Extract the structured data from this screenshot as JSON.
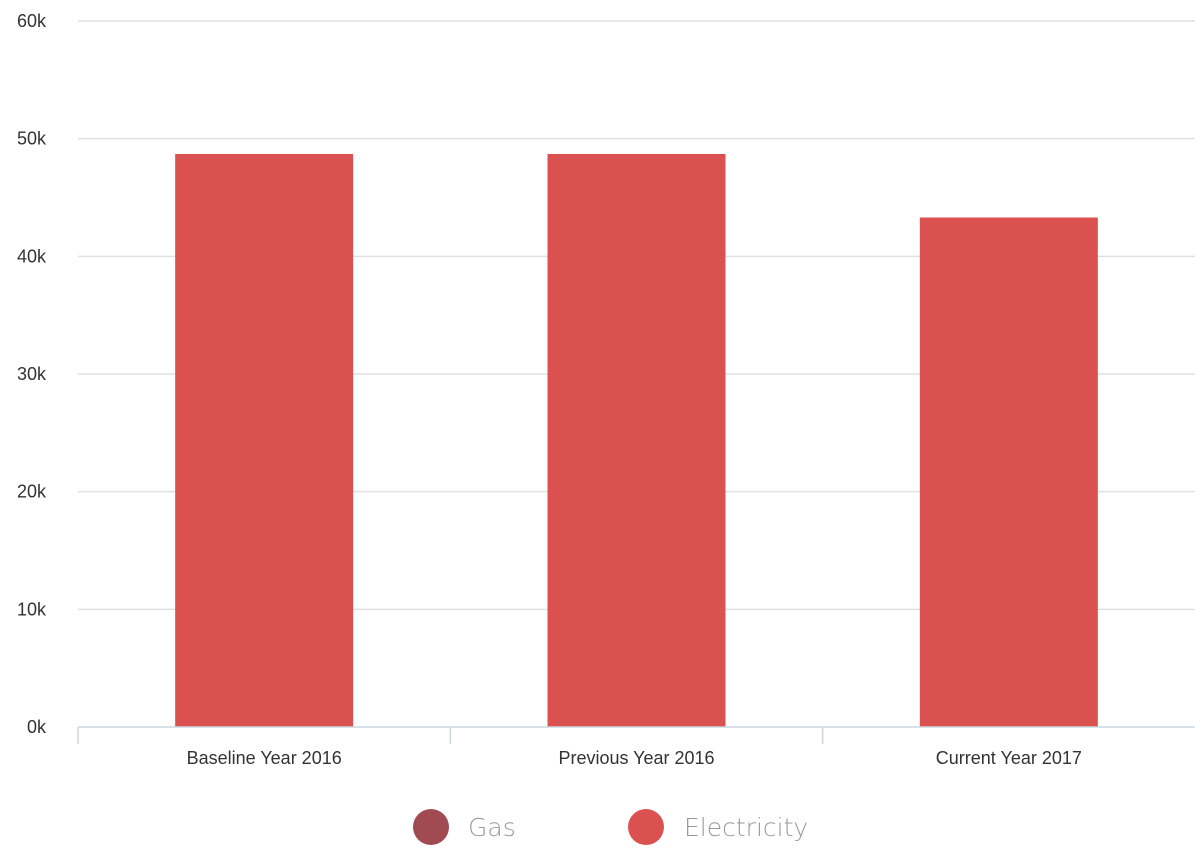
{
  "chart_data": {
    "type": "bar",
    "title": "",
    "xlabel": "",
    "ylabel": "",
    "categories": [
      "Baseline Year 2016",
      "Previous Year 2016",
      "Current Year 2017"
    ],
    "series": [
      {
        "name": "Gas",
        "values": [
          0,
          0,
          0
        ],
        "color": "#A14A52"
      },
      {
        "name": "Electricity",
        "values": [
          48700,
          48700,
          43300
        ],
        "color": "#DB514F"
      }
    ],
    "ylim": [
      0,
      60000
    ],
    "yticks": [
      0,
      10000,
      20000,
      30000,
      40000,
      50000,
      60000
    ],
    "ytick_labels": [
      "0k",
      "10k",
      "20k",
      "30k",
      "40k",
      "50k",
      "60k"
    ],
    "grid": true,
    "legend_position": "bottom-center",
    "colors": {
      "grid": "#E0E0E0",
      "axis": "#CCD6E0"
    }
  },
  "legend": {
    "items": [
      {
        "label": "Gas",
        "color": "#A14A52"
      },
      {
        "label": "Electricity",
        "color": "#DB514F"
      }
    ]
  }
}
